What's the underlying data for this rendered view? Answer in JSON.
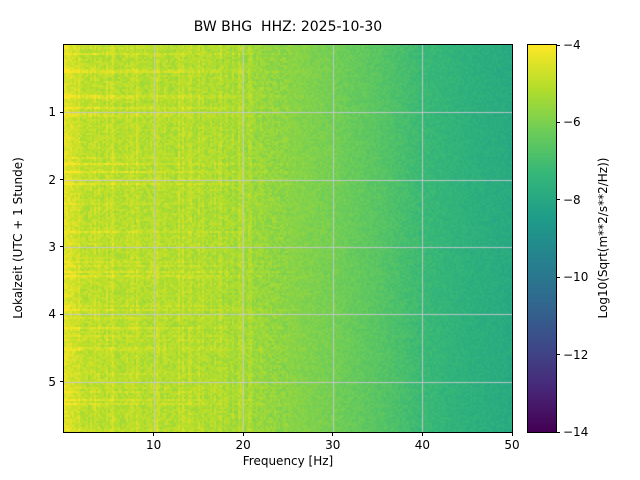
{
  "chart_data": {
    "type": "heatmap",
    "subtype": "spectrogram",
    "title": "BW BHG  HHZ: 2025-10-30",
    "xlabel": "Frequency [Hz]",
    "ylabel": "Lokalzeit (UTC + 1 Stunde)",
    "colorbar_label": "Log10(Sqrt(m**2/s**2/Hz))",
    "colormap": "viridis",
    "grid": true,
    "x_range": [
      0,
      50
    ],
    "y_range": [
      0,
      5.75
    ],
    "value_range": [
      -14,
      -4
    ],
    "x_ticks": [
      10,
      20,
      30,
      40,
      50
    ],
    "x_tick_labels": [
      "10",
      "20",
      "30",
      "40",
      "50"
    ],
    "y_ticks": [
      1,
      2,
      3,
      4,
      5
    ],
    "y_tick_labels": [
      "1",
      "2",
      "3",
      "4",
      "5"
    ],
    "colorbar_ticks": [
      -4,
      -6,
      -8,
      -10,
      -12,
      -14
    ],
    "colorbar_tick_labels": [
      "−4",
      "−6",
      "−8",
      "−10",
      "−12",
      "−14"
    ],
    "freq_profile_desc": "mean Log10(Sqrt(m**2/s**2/Hz)) value versus frequency (Hz), estimated from colormap",
    "freq_profile": [
      [
        0.0,
        -4.4
      ],
      [
        0.8,
        -4.6
      ],
      [
        2.0,
        -5.0
      ],
      [
        5.0,
        -5.1
      ],
      [
        10.0,
        -5.15
      ],
      [
        15.0,
        -5.2
      ],
      [
        20.0,
        -5.45
      ],
      [
        25.0,
        -5.75
      ],
      [
        30.0,
        -6.1
      ],
      [
        35.0,
        -6.6
      ],
      [
        40.0,
        -7.2
      ],
      [
        45.0,
        -7.6
      ],
      [
        50.0,
        -7.9
      ]
    ],
    "noise_amplitude": 0.35,
    "grid_color": "#c8c8d2",
    "viridis_endpoints": {
      "low": "#440154",
      "high": "#fde725"
    }
  }
}
